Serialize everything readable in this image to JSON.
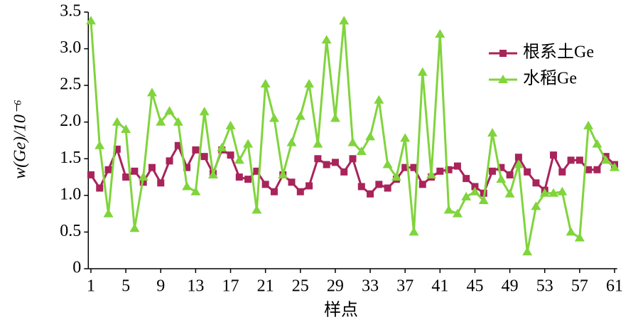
{
  "chart_data": {
    "type": "line",
    "xlabel": "样点",
    "ylabel": "w(Ge)/10⁻⁶",
    "x": [
      1,
      2,
      3,
      4,
      5,
      6,
      7,
      8,
      9,
      10,
      11,
      12,
      13,
      14,
      15,
      16,
      17,
      18,
      19,
      20,
      21,
      22,
      23,
      24,
      25,
      26,
      27,
      28,
      29,
      30,
      31,
      32,
      33,
      34,
      35,
      36,
      37,
      38,
      39,
      40,
      41,
      42,
      43,
      44,
      45,
      46,
      47,
      48,
      49,
      50,
      51,
      52,
      53,
      54,
      55,
      56,
      57,
      58,
      59,
      60,
      61
    ],
    "series": [
      {
        "name": "根系土Ge",
        "color": "#a8245a",
        "marker": "square",
        "values": [
          1.28,
          1.1,
          1.35,
          1.63,
          1.25,
          1.33,
          1.18,
          1.38,
          1.17,
          1.47,
          1.68,
          1.38,
          1.62,
          1.53,
          1.3,
          1.62,
          1.55,
          1.25,
          1.22,
          1.33,
          1.15,
          1.05,
          1.28,
          1.18,
          1.05,
          1.13,
          1.5,
          1.42,
          1.45,
          1.32,
          1.5,
          1.12,
          1.02,
          1.15,
          1.1,
          1.22,
          1.38,
          1.38,
          1.15,
          1.25,
          1.33,
          1.35,
          1.4,
          1.23,
          1.12,
          1.03,
          1.33,
          1.38,
          1.28,
          1.52,
          1.32,
          1.17,
          1.07,
          1.55,
          1.32,
          1.48,
          1.48,
          1.35,
          1.35,
          1.53,
          1.42
        ]
      },
      {
        "name": "水稻Ge",
        "color": "#80d43c",
        "marker": "triangle",
        "values": [
          3.38,
          1.68,
          0.75,
          2.0,
          1.9,
          0.55,
          1.25,
          2.4,
          2.0,
          2.15,
          2.0,
          1.12,
          1.05,
          2.14,
          1.28,
          1.65,
          1.95,
          1.48,
          1.7,
          0.8,
          2.52,
          2.05,
          1.28,
          1.72,
          2.08,
          2.52,
          1.7,
          3.12,
          2.05,
          3.38,
          1.72,
          1.6,
          1.8,
          2.3,
          1.42,
          1.25,
          1.78,
          0.5,
          2.68,
          1.28,
          3.2,
          0.8,
          0.75,
          0.98,
          1.05,
          0.93,
          1.85,
          1.22,
          1.02,
          1.42,
          0.23,
          0.85,
          1.03,
          1.03,
          1.05,
          0.5,
          0.42,
          1.95,
          1.7,
          1.48,
          1.38
        ]
      }
    ],
    "xlim": [
      0.7,
      61.3
    ],
    "xticks": [
      1,
      5,
      9,
      13,
      17,
      21,
      25,
      29,
      33,
      37,
      41,
      45,
      49,
      53,
      57,
      61
    ],
    "ylim": [
      0,
      3.5
    ],
    "yticks": [
      0,
      0.5,
      {
        "value": 1,
        "label": "1.0"
      },
      1.5,
      {
        "value": 2,
        "label": "2.0"
      },
      2.5,
      {
        "value": 3,
        "label": "3.0"
      },
      3.5
    ],
    "grid": false,
    "legend": "upper right"
  }
}
